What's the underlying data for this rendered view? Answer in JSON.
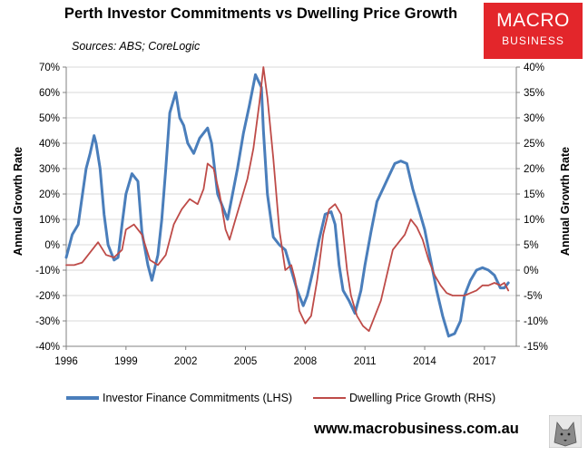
{
  "title": "Perth Investor Commitments vs Dwelling Price Growth",
  "source": "Sources: ABS; CoreLogic",
  "logo": {
    "line1": "MACRO",
    "line2": "BUSINESS"
  },
  "footer": "www.macrobusiness.com.au",
  "colors": {
    "lhs_series": "#4a7ebb",
    "rhs_series": "#be4b48",
    "logo_bg": "#e3262b",
    "grid": "#d9d9d9"
  },
  "chart_data": {
    "type": "line",
    "title": "Perth Investor Commitments vs Dwelling Price Growth",
    "xlabel": "",
    "ylabel": "Annual Growth Rate",
    "y2label": "Annual Growth Rate",
    "x_ticks": [
      "1996",
      "1999",
      "2002",
      "2005",
      "2008",
      "2011",
      "2014",
      "2017"
    ],
    "xlim": [
      1996,
      2018.6
    ],
    "ylim": [
      -40,
      70
    ],
    "y_ticks": [
      "-40%",
      "-30%",
      "-20%",
      "-10%",
      "0%",
      "10%",
      "20%",
      "30%",
      "40%",
      "50%",
      "60%",
      "70%"
    ],
    "y2lim": [
      -15,
      40
    ],
    "y2_ticks": [
      "-15%",
      "-10%",
      "-5%",
      "0%",
      "5%",
      "10%",
      "15%",
      "20%",
      "25%",
      "30%",
      "35%",
      "40%"
    ],
    "grid": true,
    "legend_position": "bottom",
    "series": [
      {
        "name": "Investor Finance Commitments (LHS)",
        "axis": "left",
        "color": "#4a7ebb",
        "x": [
          1996.0,
          1996.3,
          1996.6,
          1997.0,
          1997.2,
          1997.4,
          1997.5,
          1997.7,
          1997.9,
          1998.1,
          1998.4,
          1998.6,
          1998.8,
          1999.0,
          1999.3,
          1999.6,
          1999.8,
          2000.1,
          2000.3,
          2000.6,
          2000.8,
          2001.0,
          2001.2,
          2001.5,
          2001.7,
          2001.9,
          2002.1,
          2002.4,
          2002.7,
          2002.9,
          2003.1,
          2003.3,
          2003.6,
          2003.9,
          2004.1,
          2004.3,
          2004.6,
          2004.9,
          2005.2,
          2005.5,
          2005.8,
          2005.9,
          2006.1,
          2006.4,
          2006.7,
          2007.0,
          2007.3,
          2007.6,
          2007.9,
          2008.1,
          2008.4,
          2008.7,
          2009.0,
          2009.3,
          2009.5,
          2009.7,
          2009.9,
          2010.2,
          2010.5,
          2010.8,
          2011.0,
          2011.3,
          2011.6,
          2011.9,
          2012.2,
          2012.5,
          2012.8,
          2013.1,
          2013.4,
          2013.7,
          2014.0,
          2014.3,
          2014.6,
          2014.9,
          2015.2,
          2015.5,
          2015.8,
          2016.0,
          2016.3,
          2016.6,
          2016.9,
          2017.2,
          2017.5,
          2017.8,
          2018.0,
          2018.2
        ],
        "values": [
          -5,
          4,
          8,
          30,
          36,
          43,
          40,
          30,
          12,
          0,
          -6,
          -5,
          8,
          20,
          28,
          25,
          5,
          -8,
          -14,
          -4,
          10,
          30,
          52,
          60,
          50,
          47,
          40,
          36,
          42,
          44,
          46,
          40,
          20,
          14,
          10,
          18,
          30,
          44,
          55,
          67,
          62,
          45,
          20,
          3,
          0,
          -2,
          -10,
          -18,
          -24,
          -20,
          -10,
          2,
          12,
          13,
          8,
          -8,
          -18,
          -22,
          -27,
          -18,
          -8,
          5,
          17,
          22,
          27,
          32,
          33,
          32,
          22,
          14,
          6,
          -6,
          -18,
          -28,
          -36,
          -35,
          -30,
          -20,
          -14,
          -10,
          -9,
          -10,
          -12,
          -17,
          -17,
          -15
        ]
      },
      {
        "name": "Dwelling Price Growth (RHS)",
        "axis": "right",
        "color": "#be4b48",
        "x": [
          1996.0,
          1996.4,
          1996.8,
          1997.2,
          1997.6,
          1998.0,
          1998.4,
          1998.8,
          1999.0,
          1999.4,
          1999.8,
          2000.2,
          2000.6,
          2001.0,
          2001.4,
          2001.8,
          2002.2,
          2002.6,
          2002.9,
          2003.1,
          2003.4,
          2003.7,
          2004.0,
          2004.2,
          2004.5,
          2004.8,
          2005.1,
          2005.4,
          2005.7,
          2005.9,
          2006.1,
          2006.4,
          2006.7,
          2007.0,
          2007.3,
          2007.5,
          2007.7,
          2008.0,
          2008.3,
          2008.6,
          2008.9,
          2009.2,
          2009.5,
          2009.8,
          2010.1,
          2010.3,
          2010.6,
          2010.9,
          2011.2,
          2011.5,
          2011.8,
          2012.1,
          2012.4,
          2012.7,
          2013.0,
          2013.3,
          2013.6,
          2013.9,
          2014.2,
          2014.5,
          2014.8,
          2015.1,
          2015.4,
          2015.7,
          2016.0,
          2016.3,
          2016.6,
          2016.9,
          2017.2,
          2017.5,
          2017.8,
          2018.0,
          2018.2
        ],
        "values": [
          1,
          1,
          1.5,
          3.5,
          5.5,
          3,
          2.5,
          4,
          8,
          9,
          7,
          2,
          1,
          3,
          9,
          12,
          14,
          13,
          16,
          21,
          20,
          15,
          8,
          6,
          10,
          14,
          18,
          24,
          33,
          40,
          34,
          22,
          8,
          0,
          1,
          -2,
          -8,
          -10.5,
          -9,
          -2,
          7,
          12,
          13,
          11,
          0,
          -5,
          -9,
          -11,
          -12,
          -9,
          -6,
          -1,
          4,
          5.5,
          7,
          10,
          8.5,
          6,
          2,
          -1,
          -3,
          -4.5,
          -5,
          -5,
          -5,
          -4.5,
          -4,
          -3,
          -3,
          -2.5,
          -3,
          -2.5,
          -4
        ]
      }
    ]
  }
}
